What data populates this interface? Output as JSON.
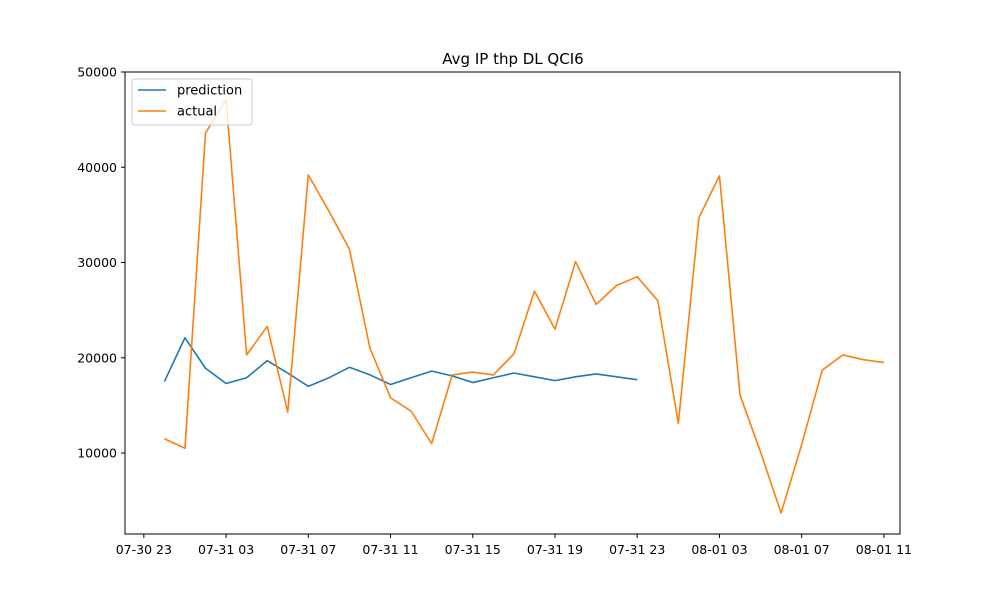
{
  "chart_data": {
    "type": "line",
    "title": "Avg IP thp DL QCI6",
    "xlabel": "",
    "ylabel": "",
    "x_tick_labels": [
      "07-30 23",
      "07-31 03",
      "07-31 07",
      "07-31 11",
      "07-31 15",
      "07-31 19",
      "07-31 23",
      "08-01 03",
      "08-01 07",
      "08-01 11"
    ],
    "y_ticks": [
      10000,
      20000,
      30000,
      40000,
      50000
    ],
    "x_hours": [
      "07-31 00",
      "07-31 01",
      "07-31 02",
      "07-31 03",
      "07-31 04",
      "07-31 05",
      "07-31 06",
      "07-31 07",
      "07-31 08",
      "07-31 09",
      "07-31 10",
      "07-31 11",
      "07-31 12",
      "07-31 13",
      "07-31 14",
      "07-31 15",
      "07-31 16",
      "07-31 17",
      "07-31 18",
      "07-31 19",
      "07-31 20",
      "07-31 21",
      "07-31 22",
      "07-31 23",
      "08-01 00",
      "08-01 01",
      "08-01 02",
      "08-01 03",
      "08-01 04",
      "08-01 05",
      "08-01 06",
      "08-01 07",
      "08-01 08",
      "08-01 09",
      "08-01 10",
      "08-01 11"
    ],
    "series": [
      {
        "name": "prediction",
        "color": "#1f77b4",
        "values": [
          17500,
          22100,
          18900,
          17300,
          17900,
          19700,
          18400,
          17000,
          17900,
          19000,
          18200,
          17200,
          17900,
          18600,
          18100,
          17400,
          17900,
          18400,
          18000,
          17600,
          18000,
          18300,
          18000,
          17700
        ]
      },
      {
        "name": "actual",
        "color": "#ff7f0e",
        "values": [
          11500,
          10500,
          43600,
          47100,
          20300,
          23300,
          14300,
          39200,
          35400,
          31400,
          21000,
          15800,
          14400,
          11000,
          18200,
          18500,
          18200,
          20400,
          27000,
          23000,
          30100,
          25600,
          27600,
          28500,
          26000,
          13100,
          34700,
          39100,
          16100,
          10100,
          3700,
          10900,
          18700,
          20300,
          19800,
          19500
        ]
      }
    ],
    "xlim": [
      "07-30 22:05",
      "08-01 11:47"
    ],
    "ylim": [
      1500,
      50000
    ],
    "grid": false,
    "legend_position": "top-left"
  }
}
